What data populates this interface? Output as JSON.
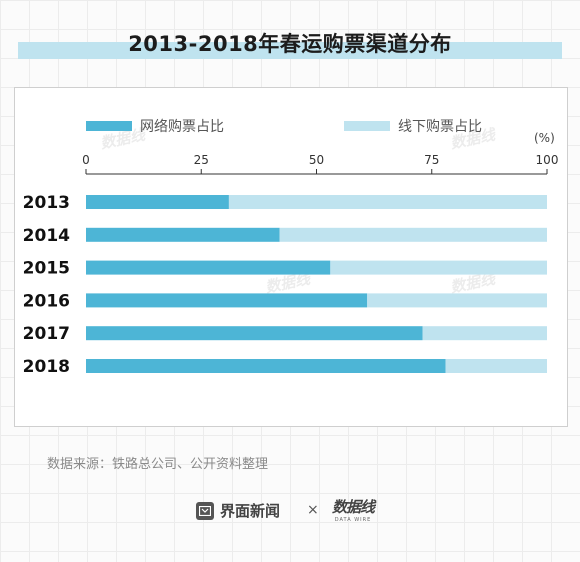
{
  "title": "2013-2018年春运购票渠道分布",
  "legend": {
    "online_label": "网络购票占比",
    "offline_label": "线下购票占比",
    "unit": "(%)"
  },
  "source_text": "数据来源：铁路总公司、公开资料整理",
  "footer": {
    "brand_jiemian": "界面新闻",
    "separator": "×",
    "brand_shujuxian": "数据线",
    "brand_shujuxian_sub": "DATA WIRE"
  },
  "watermark_text": "数据线",
  "colors": {
    "online": "#4db5d6",
    "offline": "#bfe3ef",
    "title_band": "#bfe3ef"
  },
  "chart_data": {
    "type": "bar",
    "orientation": "horizontal",
    "stacked": true,
    "categories": [
      "2013",
      "2014",
      "2015",
      "2016",
      "2017",
      "2018"
    ],
    "series": [
      {
        "name": "网络购票占比",
        "values": [
          31,
          42,
          53,
          61,
          73,
          78
        ]
      },
      {
        "name": "线下购票占比",
        "values": [
          69,
          58,
          47,
          39,
          27,
          22
        ]
      }
    ],
    "xlim": [
      0,
      100
    ],
    "xticks": [
      0,
      25,
      50,
      75,
      100
    ],
    "legend_position": "top",
    "grid": false
  }
}
